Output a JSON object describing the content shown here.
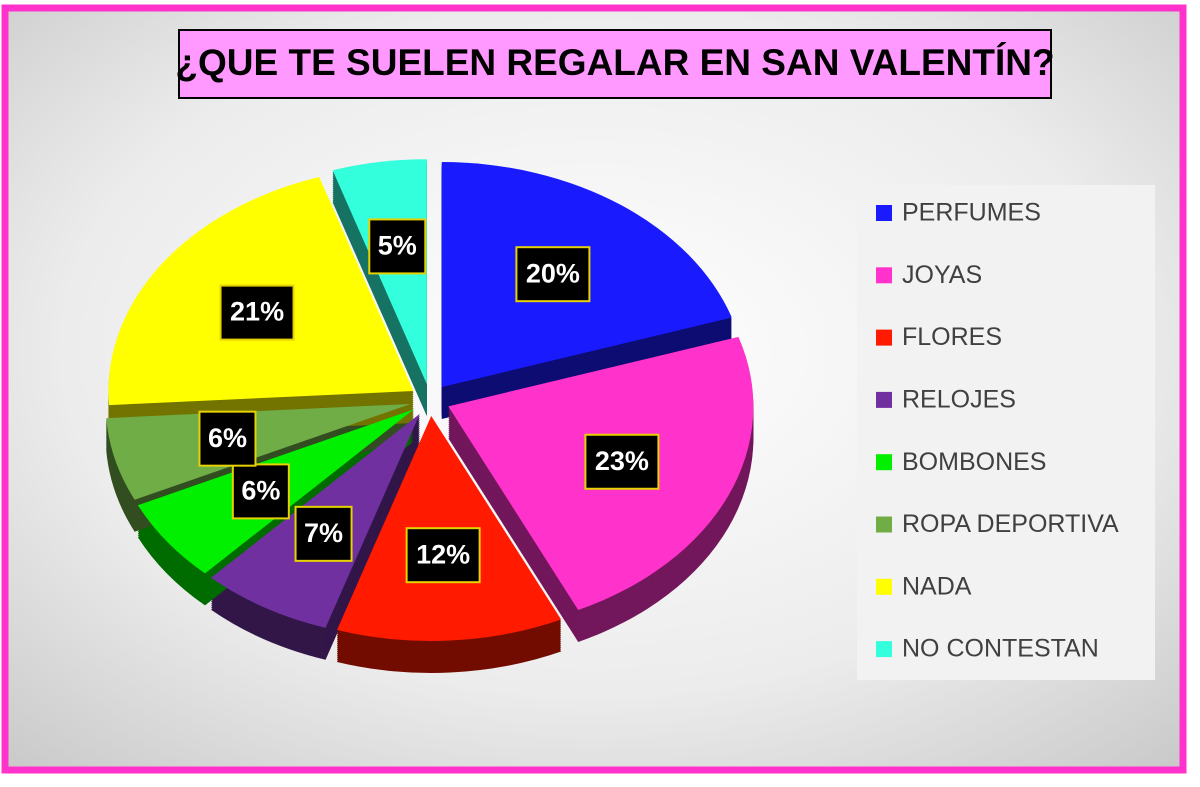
{
  "chart_data": {
    "type": "pie",
    "title": "¿QUE TE SUELEN REGALAR EN SAN VALENTÍN?",
    "categories": [
      "PERFUMES",
      "JOYAS",
      "FLORES",
      "RELOJES",
      "BOMBONES",
      "ROPA DEPORTIVA",
      "NADA",
      "NO CONTESTAN"
    ],
    "values": [
      20,
      23,
      12,
      7,
      6,
      6,
      21,
      5
    ],
    "value_labels": [
      "20%",
      "23%",
      "12%",
      "7%",
      "6%",
      "6%",
      "21%",
      "5%"
    ],
    "colors": [
      "#1a1aff",
      "#ff33cc",
      "#ff1a00",
      "#7030a0",
      "#00f000",
      "#70ad47",
      "#ffff00",
      "#33ffdd"
    ],
    "legend": "right"
  }
}
